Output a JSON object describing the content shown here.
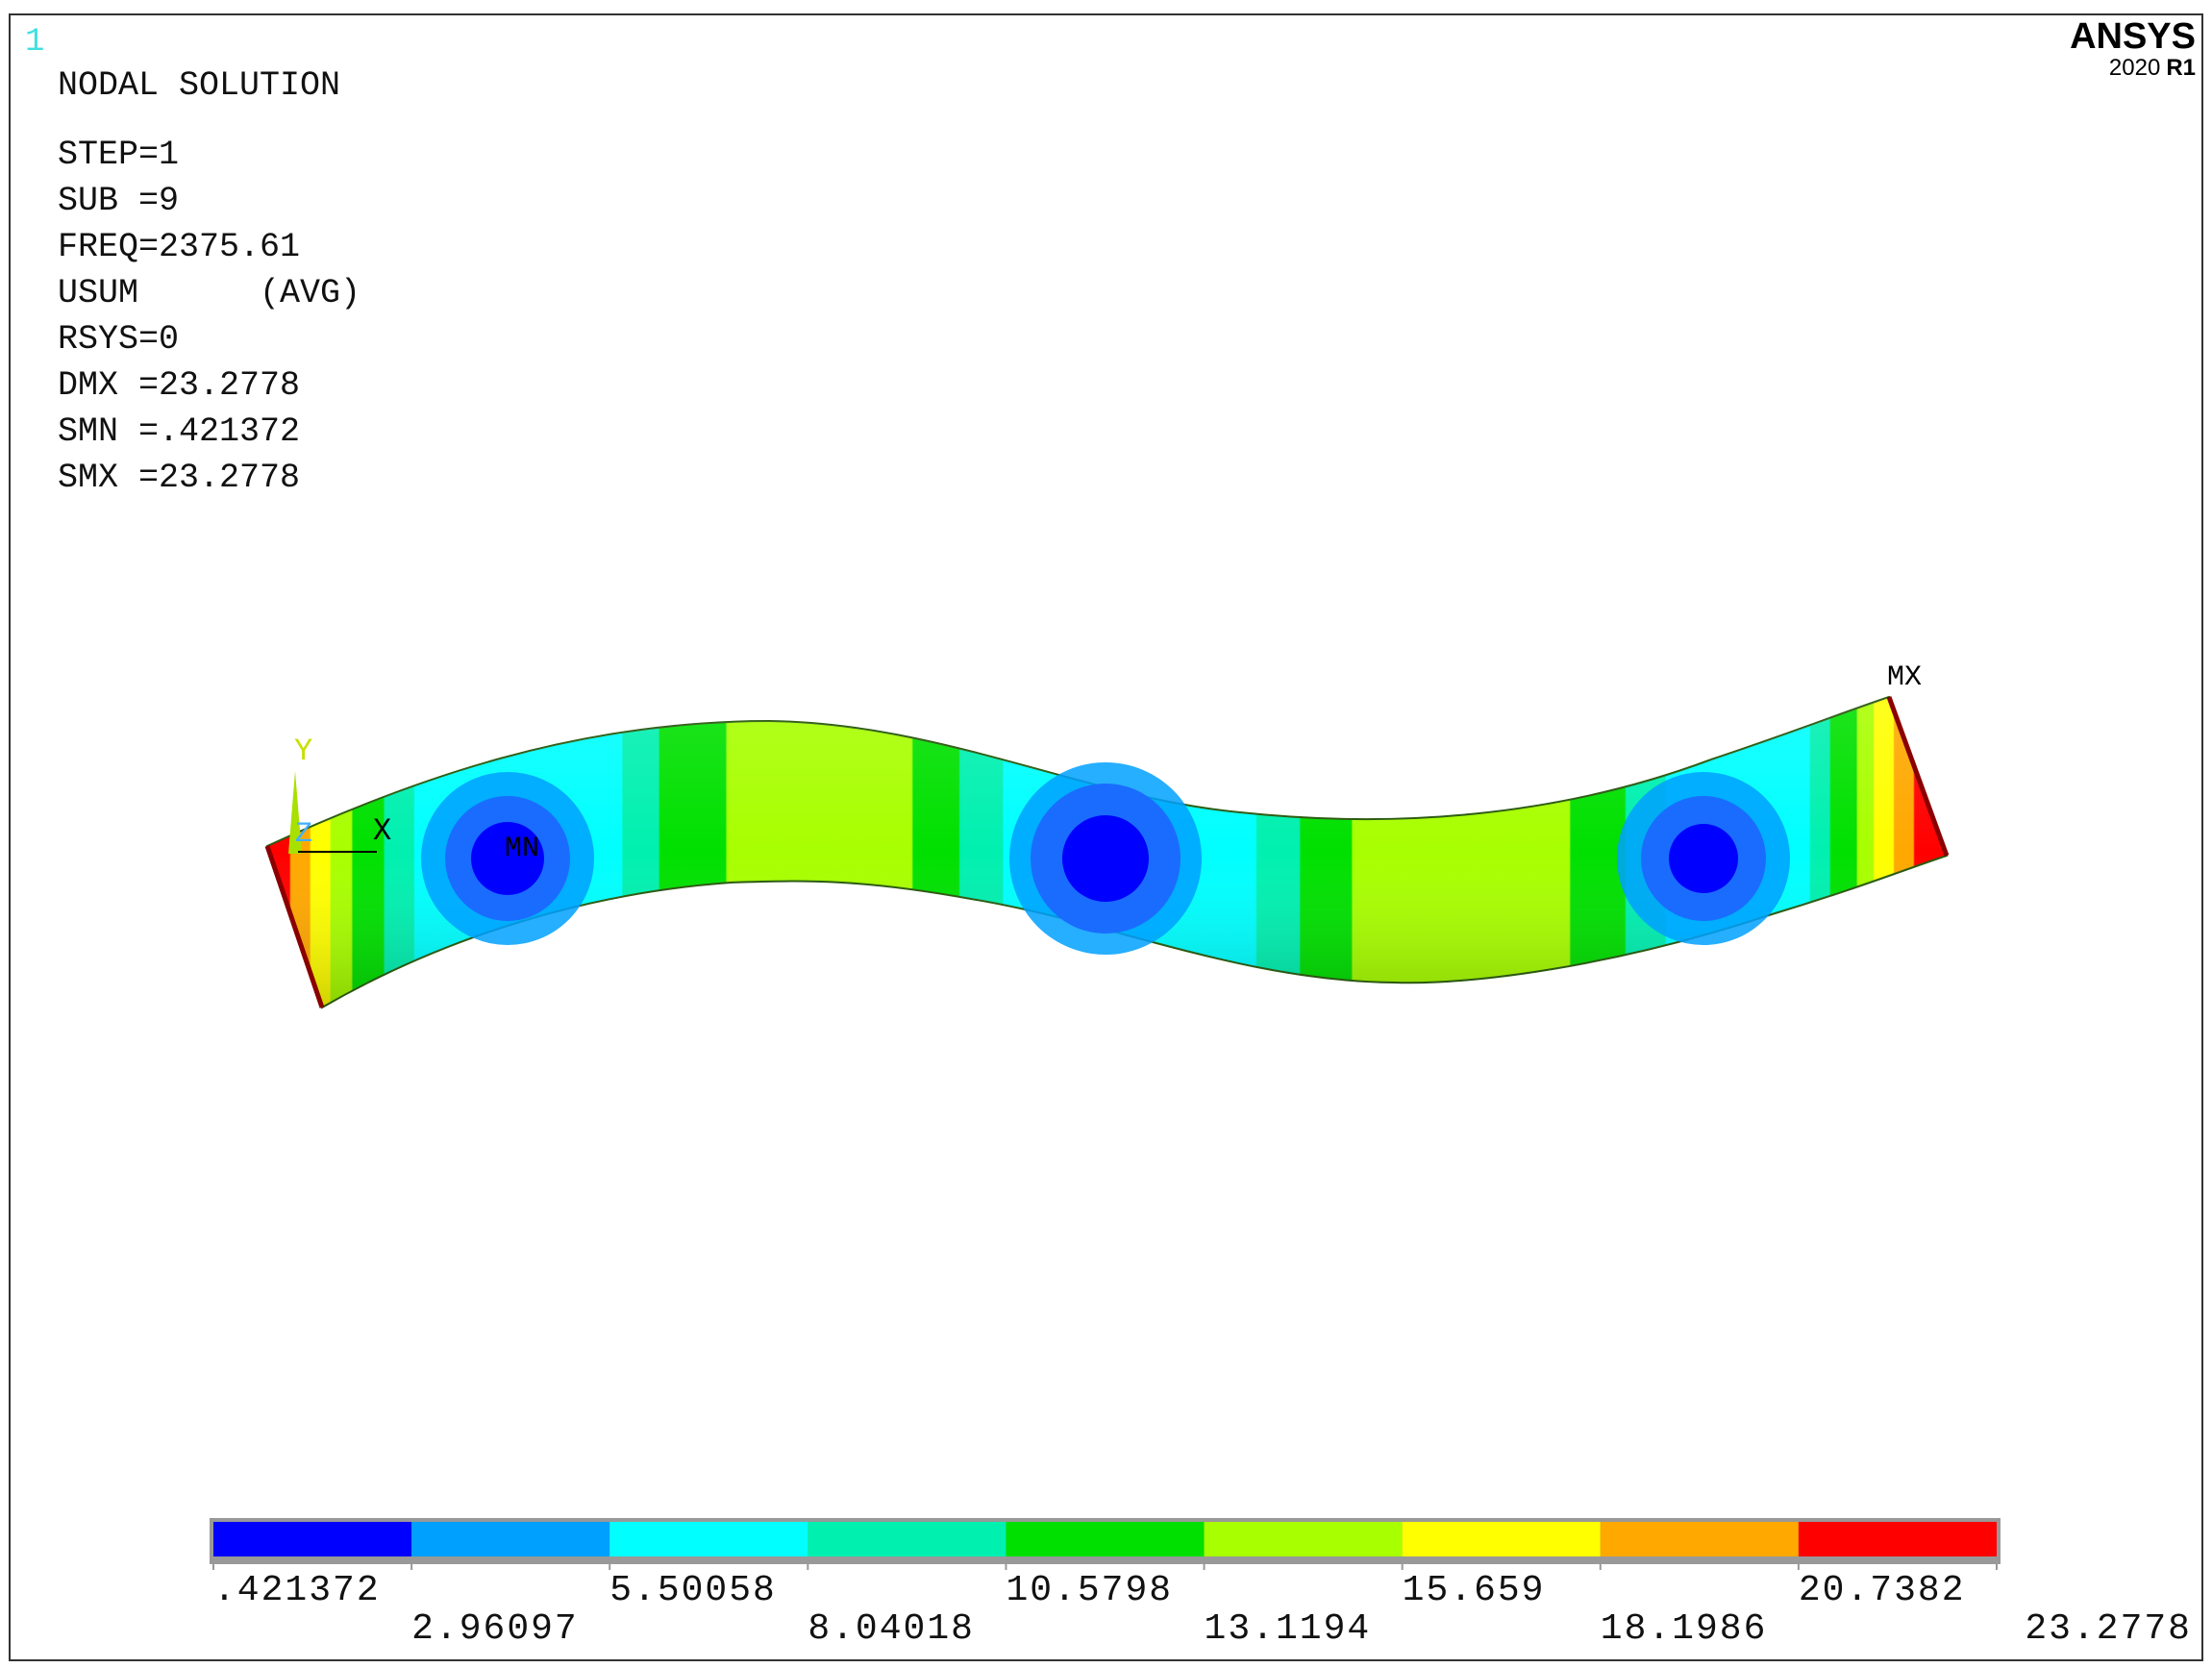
{
  "window_number": "1",
  "brand": {
    "name": "ANSYS",
    "version": "2020",
    "release": "R1"
  },
  "solution": {
    "title": "NODAL SOLUTION",
    "lines": [
      "STEP=1",
      "SUB =9",
      "FREQ=2375.61",
      "USUM      (AVG)",
      "RSYS=0",
      "DMX =23.2778",
      "SMN =.421372",
      "SMX =23.2778"
    ]
  },
  "markers": {
    "min_label": "MN",
    "max_label": "MX"
  },
  "triad": {
    "x": "X",
    "y": "Y",
    "z": "Z"
  },
  "legend": {
    "colors": [
      "#0000ff",
      "#00a0ff",
      "#00ffff",
      "#00f0b0",
      "#00e000",
      "#a8ff00",
      "#ffff00",
      "#ffa800",
      "#ff0000"
    ],
    "ticks": [
      ".421372",
      "2.96097",
      "5.50058",
      "8.04018",
      "10.5798",
      "13.1194",
      "15.659",
      "18.1986",
      "20.7382",
      "23.2778"
    ]
  }
}
